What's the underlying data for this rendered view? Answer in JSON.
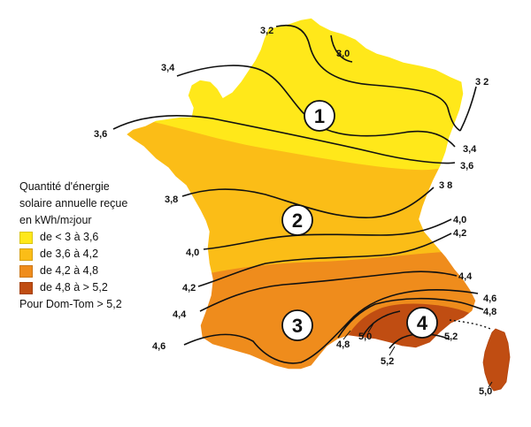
{
  "legend": {
    "title_line1": "Quantité d'énergie",
    "title_line2": "solaire annuelle reçue",
    "unit_prefix": "en kWh/",
    "unit_m": "m",
    "unit_exp": "2",
    "unit_suffix": " jour",
    "items": [
      {
        "label": "de < 3 à 3,6",
        "color": "#ffe81a"
      },
      {
        "label": "de 3,6 à 4,2",
        "color": "#fbbd17"
      },
      {
        "label": "de 4,2 à 4,8",
        "color": "#ef8c1c"
      },
      {
        "label": "de 4,8 à > 5,2",
        "color": "#c04d12"
      }
    ],
    "dom_tom": "Pour Dom-Tom > 5,2"
  },
  "zones": [
    "1",
    "2",
    "3",
    "4"
  ],
  "isolines": {
    "3_2_top": "3,2",
    "3_0": "3,0",
    "3_4_left": "3,4",
    "3_2_right": "3 2",
    "3_6_left": "3,6",
    "3_4_right": "3,4",
    "3_6_right": "3,6",
    "3_8_left": "3,8",
    "3_8_right": "3 8",
    "4_0_right": "4,0",
    "4_2_right": "4,2",
    "4_0_left": "4,0",
    "4_4_right": "4,4",
    "4_2_left": "4,2",
    "4_6_right": "4,6",
    "4_4_left": "4,4",
    "4_8_right": "4,8",
    "4_6_left": "4,6",
    "4_8_south": "4,8",
    "5_0_south": "5,0",
    "5_2_right": "5,2",
    "5_2_south": "5,2",
    "5_0_corsica": "5,0"
  },
  "colors": {
    "zone_yellow": "#ffe81a",
    "zone_light_orange": "#fbbd17",
    "zone_orange": "#ef8c1c",
    "zone_dark": "#c04d12",
    "lines": "#111111"
  }
}
